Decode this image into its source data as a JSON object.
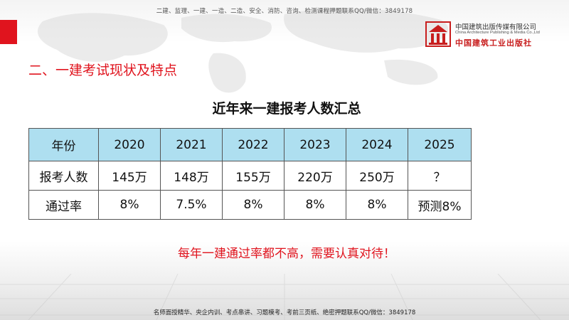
{
  "header": {
    "top_note": "二建、监理、一建、一造、二造、安全、消防、咨询、检测课程押题联系QQ/微信：3849178"
  },
  "logo": {
    "icon": "publisher-logo-icon",
    "line1": "中国建筑出版传媒有限公司",
    "line2": "China Architecture Publishing & Media Co.,Ltd",
    "line3": "中国建筑工业出版社"
  },
  "section_title": "二、一建考试现状及特点",
  "table": {
    "title": "近年来一建报考人数汇总",
    "header": [
      "年份",
      "2020",
      "2021",
      "2022",
      "2023",
      "2024",
      "2025"
    ],
    "rows": [
      [
        "报考人数",
        "145万",
        "148万",
        "155万",
        "220万",
        "250万",
        "？"
      ],
      [
        "通过率",
        "8%",
        "7.5%",
        "8%",
        "8%",
        "8%",
        "预测8%"
      ]
    ]
  },
  "note": "每年一建通过率都不高，需要认真对待！",
  "bottom_note": "名师面授精华、央企内训、考点串讲、习题模考、考前三页纸、绝密押题联系QQ/微信：3849178",
  "colors": {
    "accent_red": "#e0141e",
    "table_header_bg": "#aedff0"
  }
}
